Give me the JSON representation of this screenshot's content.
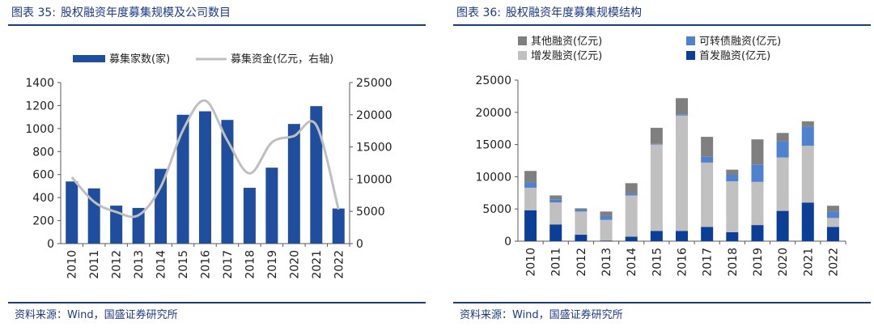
{
  "left": {
    "fig_label": "图表 35:",
    "fig_title": "股权融资年度募集规模及公司数目",
    "source": "资料来源：Wind，国盛证券研究所"
  },
  "right": {
    "fig_label": "图表 36:",
    "fig_title": "股权融资年度募集规模结构",
    "source": "资料来源：Wind，国盛证券研究所"
  },
  "chart_data": [
    {
      "type": "bar",
      "title": "股权融资年度募集规模及公司数目",
      "categories": [
        "2010",
        "2011",
        "2012",
        "2013",
        "2014",
        "2015",
        "2016",
        "2017",
        "2018",
        "2019",
        "2020",
        "2021",
        "2022"
      ],
      "series": [
        {
          "name": "募集家数(家)",
          "type": "bar",
          "axis": "left",
          "color": "#1f4e9e",
          "values": [
            540,
            480,
            330,
            310,
            650,
            1120,
            1150,
            1075,
            485,
            660,
            1040,
            1195,
            305
          ]
        },
        {
          "name": "募集资金(亿元，右轴)",
          "type": "line",
          "axis": "right",
          "color": "#bfbfbf",
          "values": [
            10300,
            6500,
            4900,
            4400,
            8800,
            17600,
            22200,
            16000,
            10900,
            15700,
            16700,
            18400,
            5300
          ]
        }
      ],
      "ylim_left": [
        0,
        1400
      ],
      "yticks_left": [
        "0",
        "200",
        "400",
        "600",
        "800",
        "1000",
        "1200",
        "1400"
      ],
      "ylim_right": [
        0,
        25000
      ],
      "yticks_right": [
        "0",
        "5000",
        "10000",
        "15000",
        "20000",
        "25000"
      ],
      "legend": "top",
      "grid": false
    },
    {
      "type": "bar",
      "stacked": true,
      "title": "股权融资年度募集规模结构",
      "categories": [
        "2010",
        "2011",
        "2012",
        "2013",
        "2014",
        "2015",
        "2016",
        "2017",
        "2018",
        "2019",
        "2020",
        "2021",
        "2022"
      ],
      "series": [
        {
          "name": "首发融资(亿元)",
          "color": "#0b3f97",
          "values": [
            4800,
            2600,
            1000,
            100,
            700,
            1600,
            1600,
            2200,
            1400,
            2500,
            4700,
            6000,
            2200
          ]
        },
        {
          "name": "增发融资(亿元)",
          "color": "#c0c0c0",
          "values": [
            3500,
            3400,
            3600,
            3200,
            6400,
            13400,
            17900,
            10000,
            7900,
            6700,
            8300,
            8800,
            1400
          ]
        },
        {
          "name": "可转债融资(亿元)",
          "color": "#4f81d1",
          "values": [
            800,
            500,
            300,
            600,
            300,
            100,
            200,
            900,
            1000,
            2700,
            2500,
            3000,
            1000
          ]
        },
        {
          "name": "其他融资(亿元)",
          "color": "#7f7f7f",
          "values": [
            1800,
            600,
            200,
            700,
            1600,
            2500,
            2500,
            3100,
            800,
            3900,
            1300,
            800,
            900
          ]
        }
      ],
      "legend_order": [
        "其他融资(亿元)",
        "可转债融资(亿元)",
        "增发融资(亿元)",
        "首发融资(亿元)"
      ],
      "ylim": [
        0,
        25000
      ],
      "yticks": [
        "0",
        "5000",
        "10000",
        "15000",
        "20000",
        "25000"
      ],
      "legend": "top",
      "grid": false
    }
  ]
}
